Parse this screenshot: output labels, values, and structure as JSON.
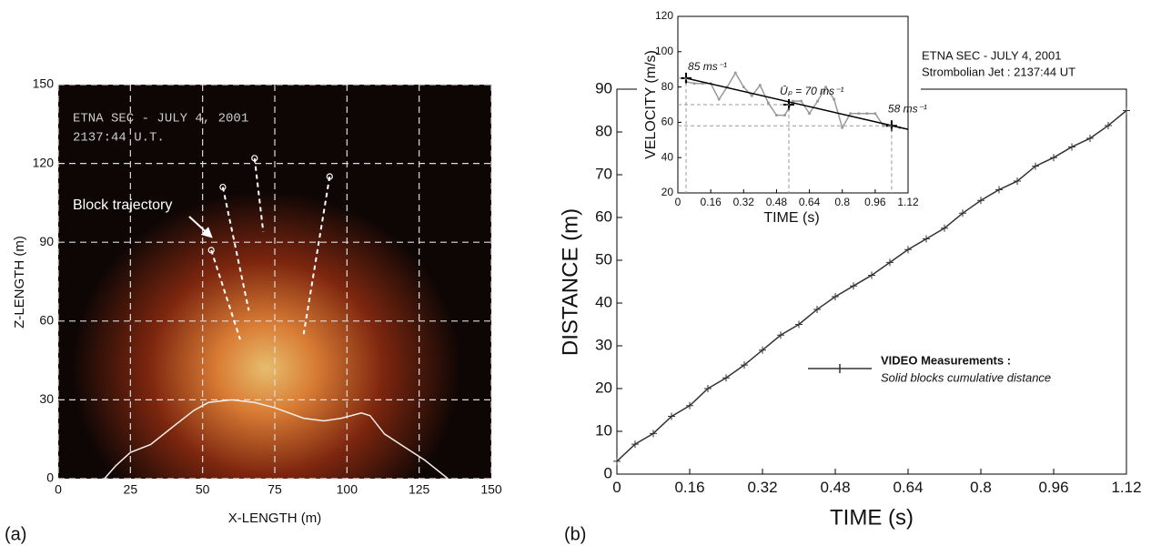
{
  "chart_data": [
    {
      "type": "image-plot",
      "panel_label": "(a)",
      "xlabel": "X-LENGTH (m)",
      "ylabel": "Z-LENGTH (m)",
      "overlay_texts": [
        "ETNA SEC - JULY 4, 2001",
        "2137:44 U.T."
      ],
      "annotation": "Block trajectory",
      "xlim": [
        0,
        150
      ],
      "ylim": [
        0,
        150
      ],
      "xticks": [
        0,
        25,
        50,
        75,
        100,
        125,
        150
      ],
      "yticks": [
        0,
        30,
        60,
        90,
        120,
        150
      ],
      "grid": true,
      "grid_color": "#dddddd",
      "series": [
        {
          "color": "#f4eee6",
          "x": [
            16,
            20,
            25,
            32,
            40,
            47,
            52,
            60,
            68,
            75,
            85,
            92,
            98,
            105,
            108,
            113,
            120,
            127,
            135
          ],
          "values": [
            0,
            5,
            10,
            13,
            20,
            26,
            29,
            30,
            29,
            27,
            23,
            22,
            23,
            25,
            24,
            17,
            12,
            7,
            0
          ]
        },
        {
          "color": "#ffffff",
          "dashed": true,
          "marker": "circle-first",
          "x": [
            53,
            63
          ],
          "values": [
            87,
            53
          ]
        },
        {
          "color": "#ffffff",
          "dashed": true,
          "marker": "circle-first",
          "x": [
            57,
            66
          ],
          "values": [
            111,
            64
          ]
        },
        {
          "color": "#ffffff",
          "dashed": true,
          "marker": "circle-first",
          "x": [
            68,
            71
          ],
          "values": [
            122,
            94
          ]
        },
        {
          "color": "#ffffff",
          "dashed": true,
          "marker": "circle-first",
          "x": [
            94,
            85
          ],
          "values": [
            115,
            55
          ]
        }
      ]
    },
    {
      "type": "line",
      "panel_label": "(b)",
      "xlabel": "TIME (s)",
      "ylabel": "DISTANCE (m)",
      "annotations": [
        "ETNA SEC - JULY 4, 2001",
        "Strombolian Jet : 2137:44 UT"
      ],
      "xlim": [
        0,
        1.12
      ],
      "ylim": [
        0,
        90
      ],
      "xticks": [
        0,
        0.16,
        0.32,
        0.48,
        0.64,
        0.8,
        0.96,
        1.12
      ],
      "yticks": [
        0,
        10,
        20,
        30,
        40,
        50,
        60,
        70,
        80,
        90
      ],
      "series": [
        {
          "name": "VIDEO Measurements :",
          "note": "Solid blocks cumulative distance",
          "color": "#333333",
          "marker": "plus",
          "x": [
            0,
            0.04,
            0.08,
            0.12,
            0.16,
            0.2,
            0.24,
            0.28,
            0.32,
            0.36,
            0.4,
            0.44,
            0.48,
            0.52,
            0.56,
            0.6,
            0.64,
            0.68,
            0.72,
            0.76,
            0.8,
            0.84,
            0.88,
            0.92,
            0.96,
            1.0,
            1.04,
            1.08,
            1.12
          ],
          "values": [
            3,
            7,
            9.5,
            13.5,
            16,
            20,
            22.5,
            25.5,
            29,
            32.5,
            35,
            38.5,
            41.5,
            44,
            46.5,
            49.5,
            52.5,
            55,
            57.5,
            61,
            64,
            66.5,
            68.5,
            72,
            74,
            76.5,
            78.5,
            81.5,
            85
          ]
        }
      ]
    },
    {
      "type": "line",
      "xlabel": "TIME (s)",
      "ylabel": "VELOCITY (m/s)",
      "xlim": [
        0,
        1.12
      ],
      "ylim": [
        20,
        120
      ],
      "xticks": [
        0,
        0.16,
        0.32,
        0.48,
        0.64,
        0.8,
        0.96,
        1.12
      ],
      "yticks": [
        20,
        40,
        60,
        80,
        100,
        120
      ],
      "series": [
        {
          "color": "#999999",
          "marker": "dot",
          "x": [
            0.04,
            0.08,
            0.12,
            0.16,
            0.2,
            0.24,
            0.28,
            0.32,
            0.36,
            0.4,
            0.44,
            0.48,
            0.52,
            0.56,
            0.6,
            0.64,
            0.68,
            0.72,
            0.76,
            0.8,
            0.84,
            0.88,
            0.92,
            0.96,
            1.0,
            1.04,
            1.08
          ],
          "values": [
            83,
            82,
            82,
            82,
            73,
            80,
            88,
            80,
            75,
            81,
            71,
            64,
            64,
            72,
            72,
            65,
            72,
            80,
            73,
            57,
            65,
            65,
            65,
            65,
            58,
            58,
            57
          ]
        },
        {
          "color": "#000000",
          "x": [
            0.04,
            1.12
          ],
          "values": [
            85,
            56
          ]
        },
        {
          "color": "#000000",
          "line": false,
          "marker": "plus-big",
          "guides": true,
          "x": [
            0.04,
            0.54,
            1.04
          ],
          "values": [
            85,
            70,
            58
          ],
          "value_labels": [
            "85 ms⁻¹",
            "Ūₚ = 70 ms⁻¹",
            "58 ms⁻¹"
          ]
        }
      ]
    }
  ]
}
